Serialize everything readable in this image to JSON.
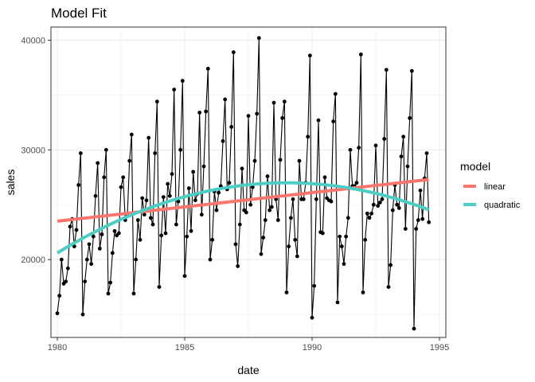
{
  "chart_data": {
    "type": "line",
    "title": "Model Fit",
    "xlabel": "date",
    "ylabel": "sales",
    "xlim": [
      1979.75,
      1995.25
    ],
    "ylim": [
      12900,
      41200
    ],
    "x_ticks": [
      1980,
      1985,
      1990,
      1995
    ],
    "x_tick_labels": [
      "1980",
      "1985",
      "1990",
      "1995"
    ],
    "y_ticks": [
      20000,
      30000,
      40000
    ],
    "y_tick_labels": [
      "20000",
      "30000",
      "40000"
    ],
    "grid": true,
    "legend": {
      "title": "model",
      "position": "right",
      "entries": [
        {
          "name": "linear",
          "color": "#f8766d"
        },
        {
          "name": "quadratic",
          "color": "#4ecdc4"
        }
      ]
    },
    "observed": {
      "color": "#000000",
      "start_year": 1980,
      "frequency": 12,
      "values": [
        15100,
        16700,
        20000,
        17800,
        18000,
        19200,
        23000,
        23700,
        21200,
        22700,
        26800,
        29700,
        15000,
        18000,
        20000,
        21400,
        19600,
        22100,
        25800,
        28800,
        21000,
        22300,
        27500,
        30000,
        16900,
        17900,
        20600,
        22600,
        22200,
        22400,
        26600,
        27500,
        23600,
        24000,
        29000,
        31400,
        16900,
        20000,
        23600,
        21800,
        25600,
        24100,
        25400,
        31100,
        23800,
        23200,
        29700,
        34400,
        17500,
        22200,
        25700,
        22400,
        26900,
        25800,
        27800,
        35500,
        23200,
        25300,
        30000,
        36300,
        18500,
        22100,
        26500,
        22600,
        28000,
        25400,
        26000,
        33400,
        24100,
        28500,
        33500,
        37400,
        20000,
        21800,
        26200,
        24500,
        26100,
        26700,
        30800,
        34600,
        26400,
        27000,
        32100,
        38900,
        21400,
        19400,
        23200,
        28300,
        24500,
        24300,
        33100,
        25000,
        26600,
        29000,
        33300,
        40200,
        20500,
        22000,
        23600,
        27600,
        24500,
        24800,
        34300,
        25500,
        23600,
        29100,
        32900,
        34400,
        17000,
        21200,
        23800,
        25500,
        21800,
        20300,
        29000,
        25500,
        25500,
        27000,
        31200,
        38600,
        14700,
        17600,
        25500,
        32700,
        22500,
        22400,
        27500,
        25600,
        25400,
        25300,
        32600,
        35100,
        16100,
        22100,
        21200,
        19600,
        22100,
        23800,
        30000,
        26700,
        26700,
        27000,
        30200,
        38700,
        17000,
        21800,
        24200,
        23800,
        24200,
        25000,
        30400,
        24900,
        25200,
        25500,
        31000,
        37300,
        17500,
        19500,
        24500,
        26800,
        25000,
        24700,
        29400,
        31200,
        22800,
        28500,
        32900,
        37200,
        13700,
        22800,
        23600,
        26300,
        23700,
        27400,
        29700,
        23400
      ]
    },
    "fits": [
      {
        "name": "linear",
        "form": "linear",
        "color": "#f8766d",
        "x_range": [
          1980,
          1994.58
        ],
        "start": 23500,
        "end": 27300
      },
      {
        "name": "quadratic",
        "form": "quadratic",
        "color": "#4ecdc4",
        "x_range": [
          1980,
          1994.58
        ],
        "start": 20600,
        "vertex_x": 1989,
        "vertex_y": 27000,
        "end": 24400
      }
    ]
  }
}
